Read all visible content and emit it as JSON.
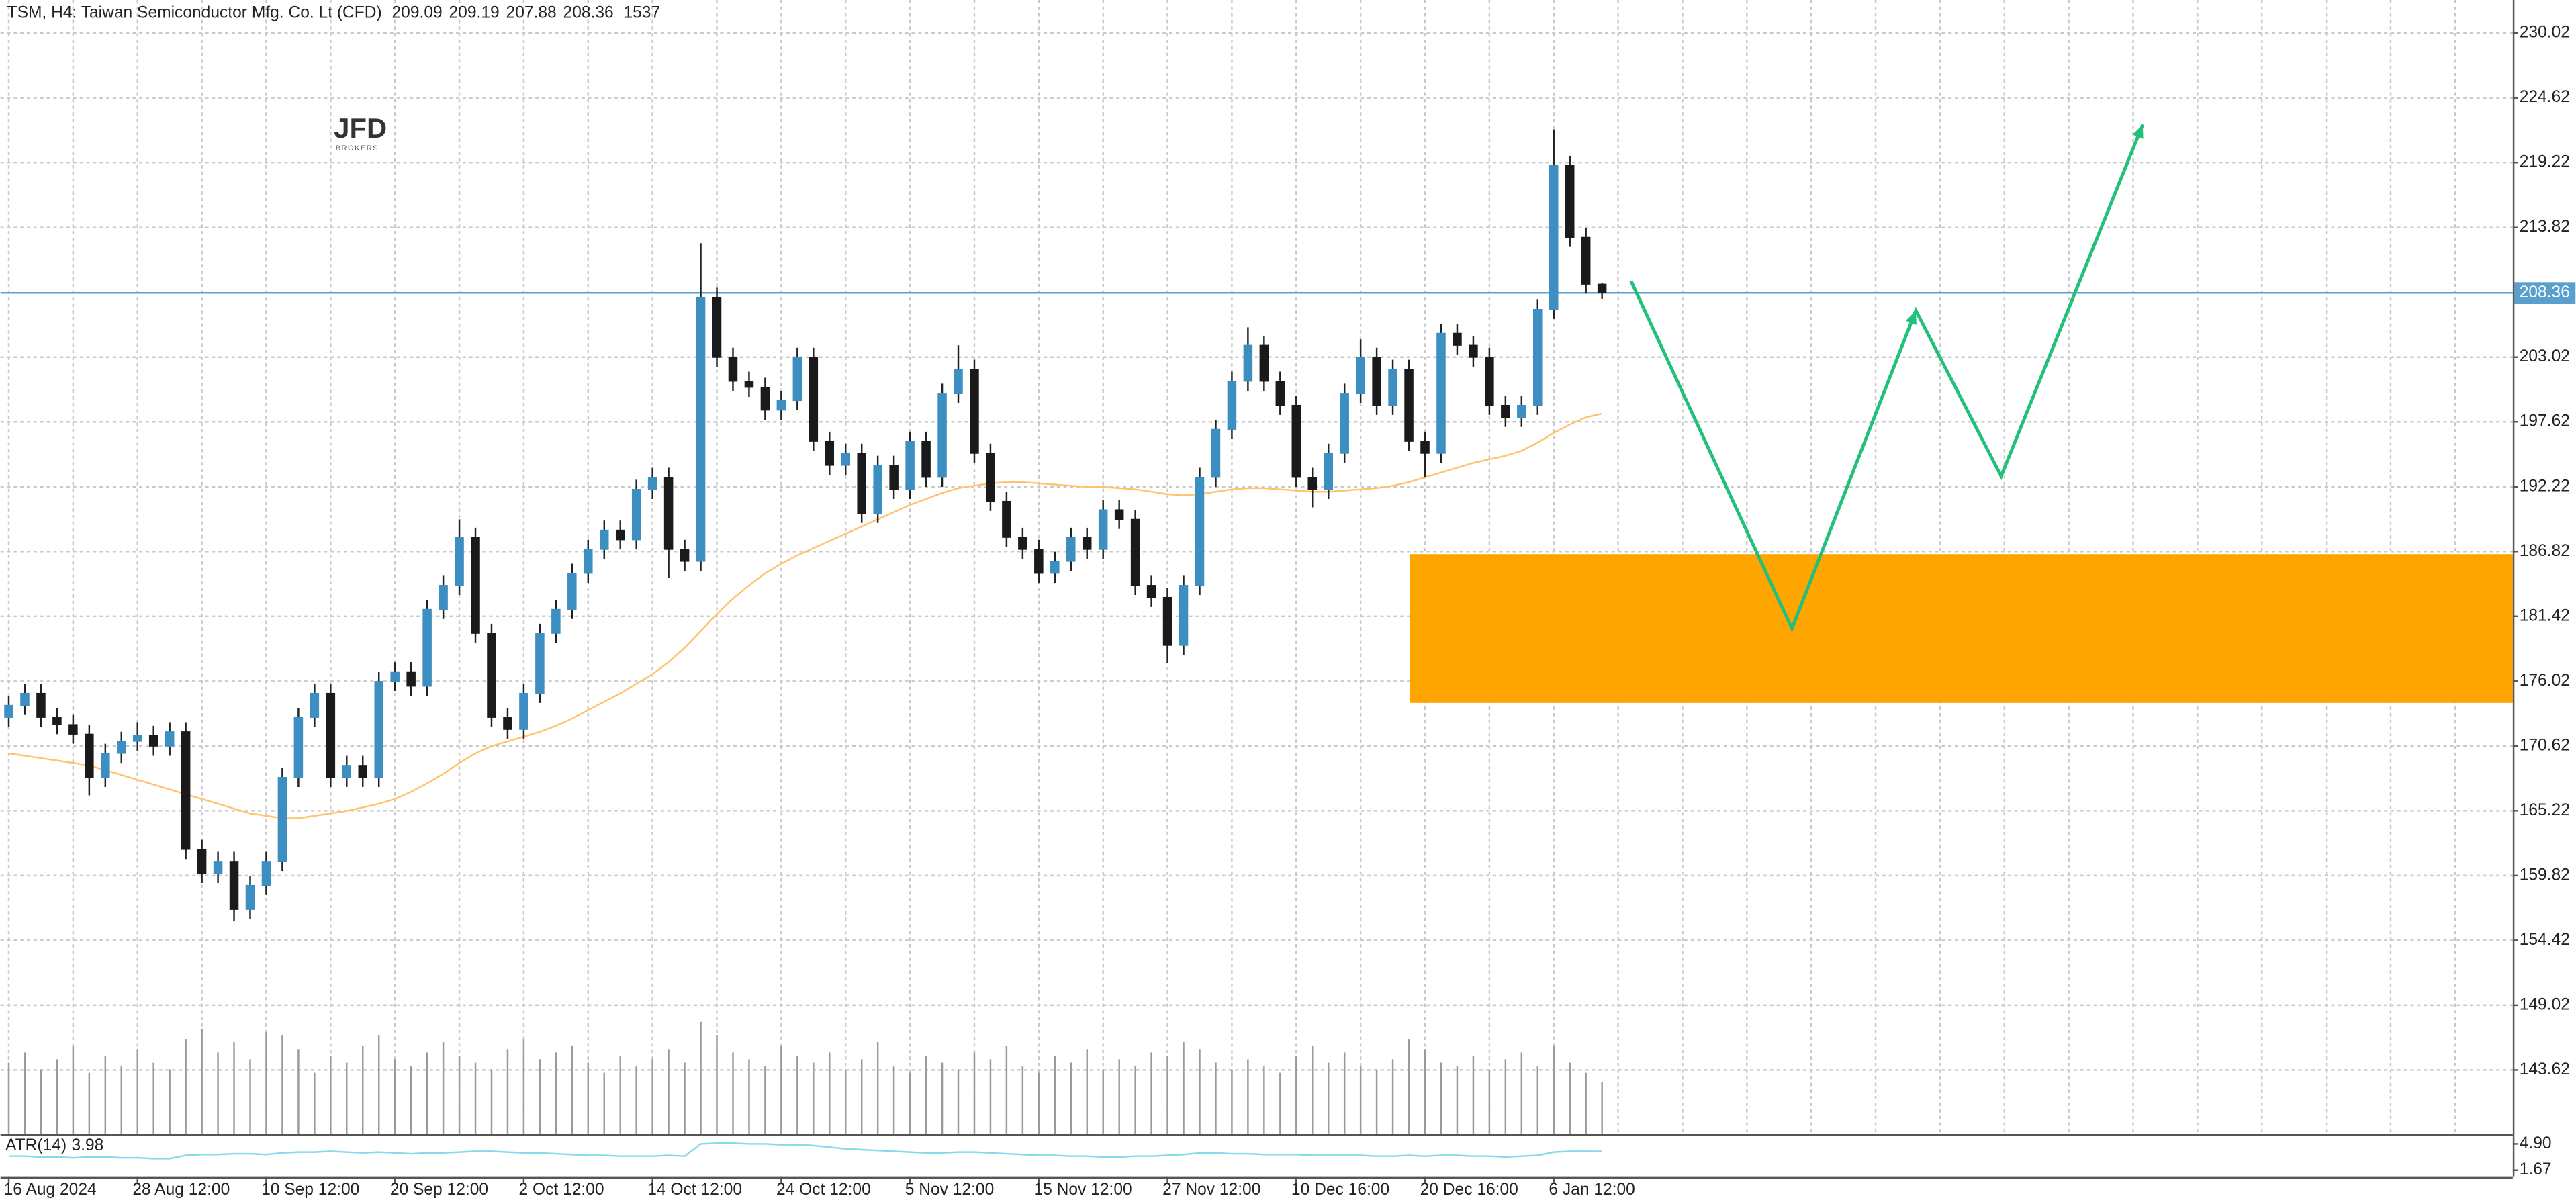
{
  "chart_data": {
    "type": "candlestick",
    "title": "TSM, H4:  Taiwan Semiconductor Mfg. Co. Lt (CFD)",
    "logo": "JFD",
    "logo_sub": "BROKERS",
    "categories": [
      "16 Aug 2024",
      null,
      null,
      null,
      null,
      null,
      null,
      null,
      "28 Aug 12:00",
      null,
      null,
      null,
      null,
      null,
      null,
      null,
      "10 Sep 12:00",
      null,
      null,
      null,
      null,
      null,
      null,
      null,
      "20 Sep 12:00",
      null,
      null,
      null,
      null,
      null,
      null,
      null,
      "2 Oct 12:00",
      null,
      null,
      null,
      null,
      null,
      null,
      null,
      "14 Oct 12:00",
      null,
      null,
      null,
      null,
      null,
      null,
      null,
      "24 Oct 12:00",
      null,
      null,
      null,
      null,
      null,
      null,
      null,
      "5 Nov 12:00",
      null,
      null,
      null,
      null,
      null,
      null,
      null,
      "15 Nov 12:00",
      null,
      null,
      null,
      null,
      null,
      null,
      null,
      "27 Nov 12:00",
      null,
      null,
      null,
      null,
      null,
      null,
      null,
      "10 Dec 16:00",
      null,
      null,
      null,
      null,
      null,
      null,
      null,
      "20 Dec 16:00",
      null,
      null,
      null,
      null,
      null,
      null,
      null,
      "6 Jan 12:00",
      null,
      null,
      null
    ],
    "open": [
      173,
      174,
      175,
      173,
      172.4,
      171.6,
      168,
      170,
      171,
      171.5,
      170.6,
      171.8,
      162,
      160,
      161,
      157,
      159,
      161,
      168,
      173,
      175,
      168,
      169,
      168,
      176,
      176.8,
      175.6,
      182,
      184,
      188,
      180,
      173,
      172,
      175,
      180,
      182,
      185,
      187,
      188.6,
      187.8,
      192,
      193,
      187,
      186,
      208,
      203,
      201,
      200.5,
      198.6,
      199.4,
      203,
      196,
      194,
      195,
      190,
      194,
      192,
      196,
      193,
      200,
      202,
      195,
      191,
      188,
      187,
      185,
      186,
      188,
      187,
      190.3,
      189.5,
      184,
      183,
      179,
      184,
      193,
      197,
      201,
      204,
      201,
      199,
      193,
      192,
      195,
      200,
      203,
      199,
      202,
      196,
      195,
      205,
      204,
      203,
      199,
      198,
      199,
      207,
      219,
      213,
      209.09
    ],
    "high": [
      174.8,
      175.8,
      175.8,
      173.8,
      173.2,
      172.4,
      170.8,
      171.8,
      172.6,
      172.3,
      172.6,
      172.6,
      162.8,
      161.8,
      161.8,
      159.8,
      161.8,
      168.8,
      173.8,
      175.8,
      175.8,
      169.8,
      169.8,
      176.8,
      177.6,
      177.6,
      182.8,
      184.8,
      189.5,
      188.8,
      180.8,
      173.8,
      175.8,
      180.8,
      182.8,
      185.8,
      187.8,
      189.4,
      189.4,
      192.8,
      193.8,
      193.8,
      187.8,
      212.5,
      208.8,
      203.8,
      201.8,
      201.3,
      200.2,
      203.8,
      203.8,
      196.8,
      195.8,
      195.8,
      194.8,
      194.8,
      196.8,
      196.8,
      200.8,
      204,
      202.8,
      195.8,
      191.8,
      188.8,
      187.8,
      186.8,
      188.8,
      188.8,
      191.1,
      191.1,
      190.3,
      184.8,
      183.8,
      184.8,
      193.8,
      197.8,
      201.8,
      205.5,
      204.8,
      201.8,
      199.8,
      193.8,
      195.8,
      200.8,
      204.5,
      203.8,
      202.8,
      202.8,
      196.8,
      205.8,
      205.8,
      204.8,
      203.8,
      199.8,
      199.8,
      207.8,
      222,
      219.8,
      213.8,
      209.19
    ],
    "low": [
      172.2,
      173.2,
      172.2,
      171.6,
      170.8,
      166.5,
      167.2,
      169.2,
      170.2,
      169.8,
      169.8,
      161.2,
      159.2,
      159.2,
      156,
      156.2,
      158.2,
      160.2,
      167.2,
      172.2,
      167.2,
      167.2,
      167.2,
      167.2,
      175.2,
      174.8,
      174.8,
      181.2,
      183.2,
      179.2,
      172.2,
      171.2,
      171.2,
      174.2,
      179.2,
      181.2,
      184.2,
      186.2,
      187,
      187,
      191.2,
      184.6,
      185.2,
      185.2,
      202.2,
      200.2,
      199.7,
      197.8,
      197.8,
      198.6,
      195.2,
      193.2,
      193.2,
      189.2,
      189.2,
      191.2,
      191.2,
      192.2,
      192.2,
      199.2,
      194.2,
      190.2,
      187.2,
      186.2,
      184.2,
      184.2,
      185.2,
      186.2,
      186.2,
      188.7,
      183.2,
      182.2,
      177.5,
      178.2,
      183.2,
      192.2,
      196.2,
      200.2,
      200.2,
      198.2,
      192.2,
      190.5,
      191.2,
      194.2,
      199.2,
      198.2,
      198.2,
      195.2,
      193,
      194.2,
      203.2,
      202.2,
      198.2,
      197.2,
      197.2,
      198.2,
      206.2,
      212.2,
      208.3,
      207.88
    ],
    "close": [
      174,
      175,
      173,
      172.4,
      171.6,
      168,
      170,
      171,
      171.5,
      170.6,
      171.8,
      162,
      160,
      161,
      157,
      159,
      161,
      168,
      173,
      175,
      168,
      169,
      168,
      176,
      176.8,
      175.6,
      182,
      184,
      188,
      180,
      173,
      172,
      175,
      180,
      182,
      185,
      187,
      188.6,
      187.8,
      192,
      193,
      187,
      186,
      208,
      203,
      201,
      200.5,
      198.6,
      199.4,
      203,
      196,
      194,
      195,
      190,
      194,
      192,
      196,
      193,
      200,
      202,
      195,
      191,
      188,
      187,
      185,
      186,
      188,
      187,
      190.3,
      189.5,
      184,
      183,
      179,
      184,
      193,
      197,
      201,
      204,
      201,
      199,
      193,
      192,
      195,
      200,
      203,
      199,
      202,
      196,
      195,
      205,
      204,
      203,
      199,
      198,
      199,
      207,
      219,
      213,
      209.09,
      208.36
    ],
    "volume": [
      2100,
      2400,
      1900,
      2200,
      2600,
      1800,
      2300,
      2000,
      2500,
      2100,
      1900,
      2800,
      3100,
      2400,
      2700,
      2200,
      3000,
      2900,
      2500,
      1800,
      2300,
      2100,
      2600,
      2900,
      2200,
      2000,
      2400,
      2700,
      2300,
      2100,
      1900,
      2500,
      2800,
      2200,
      2400,
      2600,
      2100,
      1800,
      2300,
      2000,
      2200,
      2500,
      2100,
      3300,
      2900,
      2400,
      2200,
      2000,
      2600,
      2300,
      2100,
      2400,
      1900,
      2200,
      2700,
      2000,
      1800,
      2300,
      2100,
      1900,
      2400,
      2200,
      2600,
      2000,
      1800,
      2300,
      2100,
      2500,
      1900,
      2200,
      2000,
      2400,
      2300,
      2700,
      2500,
      2100,
      1900,
      2200,
      2000,
      1800,
      2300,
      2600,
      2100,
      2400,
      2000,
      1900,
      2200,
      2800,
      2500,
      2100,
      2000,
      2300,
      1900,
      2200,
      2400,
      2000,
      2600,
      2100,
      1800,
      1537
    ],
    "volume_lim": [
      0,
      3500
    ],
    "volume_color": "#9a9a9a",
    "up_color": "#3d8fc2",
    "down_color": "#1a1a1a",
    "ylim": [
      138.29,
      232.77
    ],
    "yticks": [
      230.02,
      224.62,
      219.22,
      213.82,
      203.02,
      197.62,
      192.22,
      186.82,
      181.42,
      176.02,
      170.62,
      165.22,
      159.82,
      154.42,
      149.02,
      143.62
    ],
    "grid": true,
    "last_price_color": "#5b9fcf",
    "ma": {
      "color": "#ffc46b",
      "values": [
        170,
        169.8,
        169.6,
        169.4,
        169.2,
        169,
        168.6,
        168.2,
        167.8,
        167.4,
        167,
        166.6,
        166.2,
        165.8,
        165.4,
        165,
        164.8,
        164.6,
        164.6,
        164.8,
        165,
        165.2,
        165.5,
        165.8,
        166.2,
        166.8,
        167.5,
        168.3,
        169.2,
        170,
        170.6,
        171,
        171.4,
        171.8,
        172.3,
        172.9,
        173.6,
        174.3,
        175,
        175.8,
        176.6,
        177.6,
        178.8,
        180.2,
        181.6,
        182.9,
        184,
        185,
        185.8,
        186.5,
        187.1,
        187.7,
        188.3,
        188.9,
        189.5,
        190.1,
        190.7,
        191.2,
        191.7,
        192.1,
        192.3,
        192.5,
        192.6,
        192.6,
        192.5,
        192.4,
        192.3,
        192.2,
        192.2,
        192.1,
        192,
        191.8,
        191.6,
        191.5,
        191.6,
        191.8,
        192,
        192.1,
        192.1,
        192,
        191.9,
        191.8,
        191.8,
        191.9,
        192,
        192.1,
        192.3,
        192.6,
        193,
        193.4,
        193.8,
        194.2,
        194.5,
        194.8,
        195.2,
        195.9,
        196.7,
        197.4,
        198,
        198.3
      ]
    },
    "atr": {
      "name": "ATR(14)",
      "color": "#86d9ea",
      "ylim": [
        0.86,
        5.71
      ],
      "yticks": [
        {
          "value": 4.9,
          "label": "4.90"
        },
        1.67
      ],
      "values": [
        3.4,
        3.4,
        3.3,
        3.3,
        3.2,
        3.3,
        3.3,
        3.2,
        3.2,
        3.1,
        3.1,
        3.5,
        3.6,
        3.6,
        3.7,
        3.7,
        3.6,
        3.8,
        3.9,
        3.9,
        4.0,
        3.9,
        3.8,
        3.9,
        3.8,
        3.7,
        3.8,
        3.8,
        3.9,
        4.0,
        4.0,
        3.9,
        3.8,
        3.8,
        3.7,
        3.6,
        3.5,
        3.5,
        3.4,
        3.4,
        3.4,
        3.5,
        3.4,
        4.9,
        5.0,
        5.0,
        4.9,
        4.9,
        4.8,
        4.8,
        4.7,
        4.5,
        4.3,
        4.2,
        4.1,
        4.0,
        3.9,
        3.8,
        3.8,
        3.9,
        3.9,
        3.8,
        3.7,
        3.6,
        3.5,
        3.5,
        3.4,
        3.4,
        3.3,
        3.3,
        3.4,
        3.4,
        3.5,
        3.6,
        3.8,
        3.8,
        3.7,
        3.7,
        3.6,
        3.6,
        3.6,
        3.5,
        3.5,
        3.5,
        3.5,
        3.4,
        3.4,
        3.5,
        3.4,
        3.5,
        3.5,
        3.4,
        3.4,
        3.3,
        3.4,
        3.5,
        3.9,
        4.0,
        4.0,
        3.98
      ]
    },
    "zone": {
      "from": 174.2,
      "to": 186.6,
      "color": "#ffa500"
    },
    "projection": {
      "color": "#22c07a",
      "x": [
        100.8,
        110.8,
        118.5,
        123.8,
        132.6
      ],
      "values": [
        209.36,
        180.4,
        206.9,
        193.1,
        222.4
      ]
    }
  }
}
